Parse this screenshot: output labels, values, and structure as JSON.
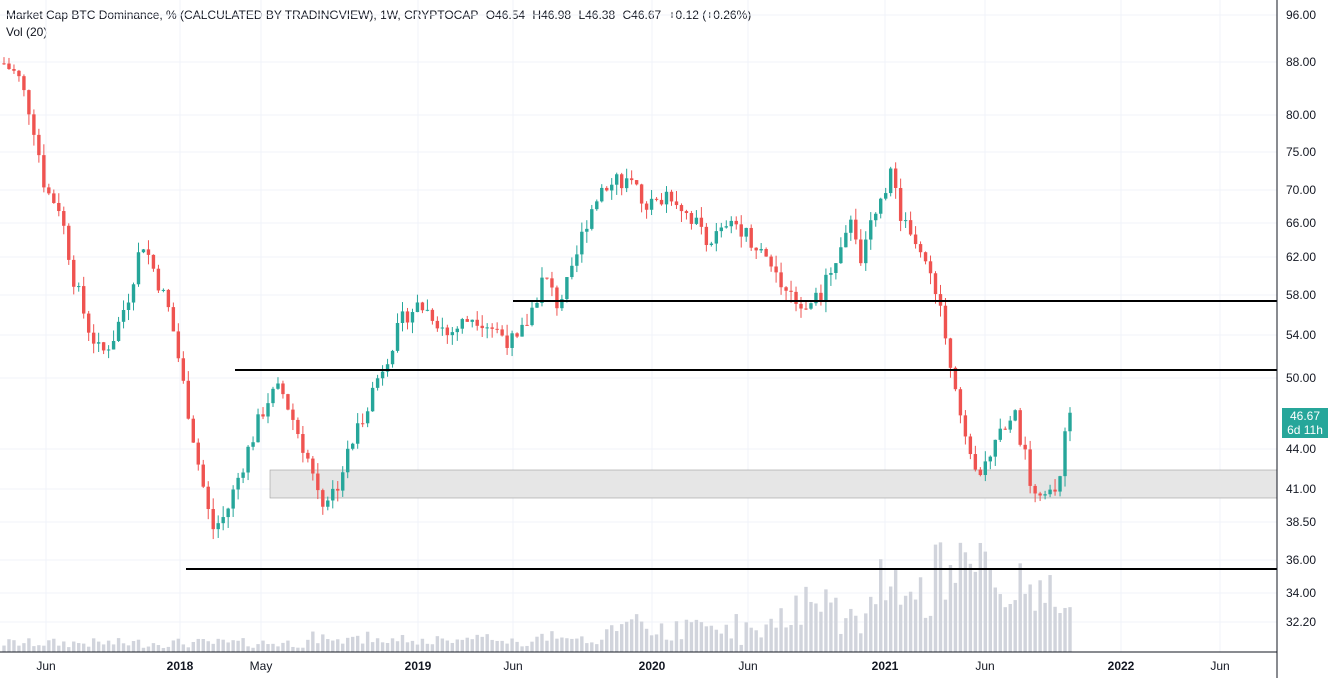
{
  "legend": {
    "symbol": "Market Cap BTC Dominance, % (CALCULATED BY TRADINGVIEW), 1W, CRYPTOCAP",
    "open": "O46.54",
    "high": "H46.98",
    "low": "L46.38",
    "close": "C46.67",
    "change": "+0.12 (+0.26%)",
    "volume_label": "Vol (20)"
  },
  "price_tag": {
    "price": "46.67",
    "countdown": "6d 11h"
  },
  "colors": {
    "up": "#26a69a",
    "down": "#ef5350",
    "volume": "#d1d4dc",
    "band": "#e6e6e6",
    "line": "#000000"
  },
  "chart_data": {
    "type": "candlestick",
    "title": "Market Cap BTC Dominance, % (CALCULATED BY TRADINGVIEW), 1W, CRYPTOCAP",
    "y_axis": {
      "scale": "log",
      "range": [
        30.5,
        96
      ],
      "ticks": [
        "96.00",
        "88.00",
        "80.00",
        "75.00",
        "70.00",
        "66.00",
        "62.00",
        "58.00",
        "54.00",
        "50.00",
        "44.00",
        "41.00",
        "38.50",
        "36.00",
        "34.00",
        "32.20"
      ]
    },
    "x_axis": {
      "ticks": [
        {
          "label": "Jun",
          "bold": false
        },
        {
          "label": "2018",
          "bold": true
        },
        {
          "label": "May",
          "bold": false
        },
        {
          "label": "2019",
          "bold": true
        },
        {
          "label": "Jun",
          "bold": false
        },
        {
          "label": "2020",
          "bold": true
        },
        {
          "label": "Jun",
          "bold": false
        },
        {
          "label": "2021",
          "bold": true
        },
        {
          "label": "Jun",
          "bold": false
        },
        {
          "label": "2022",
          "bold": true
        },
        {
          "label": "Jun",
          "bold": false
        }
      ]
    },
    "horizontal_lines": [
      57.2,
      50.8,
      35.4
    ],
    "support_zone": [
      40.2,
      42.6
    ],
    "close_path": [
      88,
      86,
      80,
      70,
      68,
      60,
      55,
      52,
      54,
      58,
      64,
      60,
      56,
      49,
      43,
      38,
      39,
      42,
      45,
      48,
      49,
      46,
      43,
      40,
      41,
      44,
      47,
      50,
      53,
      56,
      57,
      56,
      54,
      55,
      56,
      55,
      54,
      53,
      56,
      60,
      57,
      60,
      66,
      70,
      72,
      71,
      69,
      68,
      70,
      68,
      66,
      64,
      65,
      66,
      64,
      62,
      60,
      58,
      57,
      58,
      62,
      66,
      62,
      68,
      72,
      66,
      62,
      61,
      54,
      47,
      42,
      43,
      46,
      47,
      42,
      40,
      41,
      46.67
    ],
    "last": {
      "open": 46.54,
      "high": 46.98,
      "low": 46.38,
      "close": 46.67,
      "change": 0.12,
      "change_pct": 0.26
    }
  }
}
